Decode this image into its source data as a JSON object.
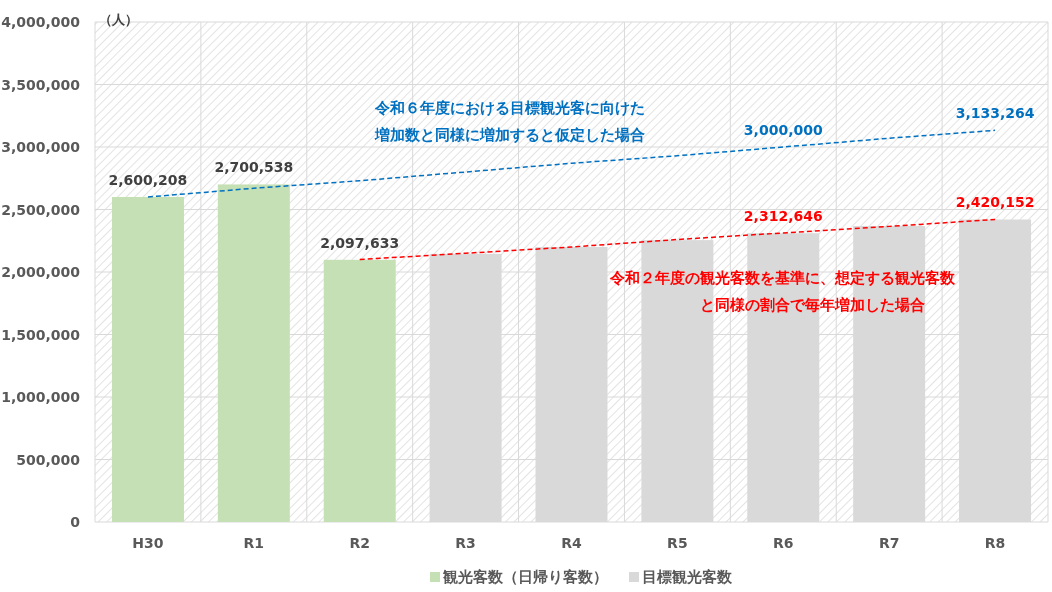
{
  "chart_data": {
    "type": "bar",
    "ylabel": "（人）",
    "categories": [
      "H30",
      "R1",
      "R2",
      "R3",
      "R4",
      "R5",
      "R6",
      "R7",
      "R8"
    ],
    "ylim": [
      0,
      4000000
    ],
    "yticks": [
      {
        "value": 0,
        "label": "0"
      },
      {
        "value": 500000,
        "label": "500,000"
      },
      {
        "value": 1000000,
        "label": "1,000,000"
      },
      {
        "value": 1500000,
        "label": "1,500,000"
      },
      {
        "value": 2000000,
        "label": "2,000,000"
      },
      {
        "value": 2500000,
        "label": "2,500,000"
      },
      {
        "value": 3000000,
        "label": "3,000,000"
      },
      {
        "value": 3500000,
        "label": "3,500,000"
      },
      {
        "value": 4000000,
        "label": "4,000,000"
      }
    ],
    "grid": true,
    "legend": "bottom",
    "series": [
      {
        "name": "観光客数（日帰り客数）",
        "color": "#c5e0b4",
        "values": [
          2600208,
          2700538,
          2097633,
          null,
          null,
          null,
          null,
          null,
          null
        ],
        "value_labels": [
          "2,600,208",
          "2,700,538",
          "2,097,633",
          null,
          null,
          null,
          null,
          null,
          null
        ]
      },
      {
        "name": "目標観光客数",
        "color": "#d9d9d9",
        "values": [
          null,
          null,
          null,
          2145000,
          2200000,
          2255000,
          2310000,
          2368000,
          2420000
        ]
      },
      {
        "type": "line",
        "color": "#0070c0",
        "line_style": "dashed",
        "values": [
          2600000,
          2670000,
          2730000,
          2800000,
          2870000,
          2930000,
          3000000,
          3070000,
          3133264
        ],
        "value_labels": [
          null,
          null,
          null,
          null,
          null,
          null,
          "3,000,000",
          null,
          "3,133,264"
        ]
      },
      {
        "type": "line",
        "color": "#ff0000",
        "line_style": "dashed",
        "values": [
          null,
          null,
          2100000,
          2150000,
          2200000,
          2260000,
          2312646,
          2365000,
          2420152
        ],
        "value_labels": [
          null,
          null,
          null,
          null,
          null,
          null,
          "2,312,646",
          null,
          "2,420,152"
        ]
      }
    ],
    "annotations": [
      "令和６年度における目標観光客に向けた",
      "増加数と同様に増加すると仮定した場合",
      "令和２年度の観光客数を基準に、想定する観光客数",
      "と同様の割合で毎年増加した場合"
    ]
  }
}
